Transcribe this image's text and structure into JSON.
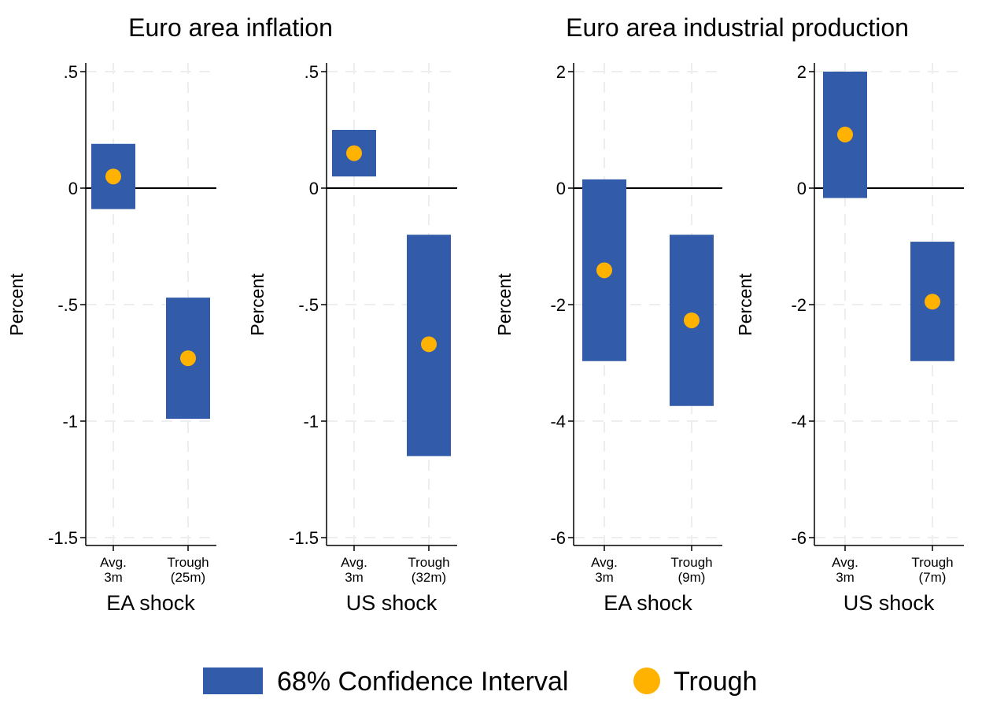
{
  "chart_data": {
    "type": "bar",
    "legend": {
      "position": "bottom",
      "items": [
        {
          "label": "68% Confidence Interval",
          "kind": "ci-bar",
          "color": "#325baa"
        },
        {
          "label": "Trough",
          "kind": "point",
          "color": "#ffb300"
        }
      ]
    },
    "groups": [
      {
        "title": "Euro area inflation"
      },
      {
        "title": "Euro area industrial production"
      }
    ],
    "ylabel": "Percent",
    "panels": [
      {
        "group": 0,
        "xlabel": "EA shock",
        "ylim": [
          -1.5,
          0.5
        ],
        "yticks": [
          0.5,
          0,
          -0.5,
          -1,
          -1.5
        ],
        "ytick_labels": [
          ".5",
          "0",
          "-.5",
          "-1",
          "-1.5"
        ],
        "categories": [
          {
            "label": [
              "Avg.",
              "3m"
            ],
            "ci_low": -0.09,
            "ci_high": 0.19,
            "point": 0.05
          },
          {
            "label": [
              "Trough",
              "(25m)"
            ],
            "ci_low": -0.99,
            "ci_high": -0.47,
            "point": -0.73
          }
        ]
      },
      {
        "group": 0,
        "xlabel": "US shock",
        "ylim": [
          -1.5,
          0.5
        ],
        "yticks": [
          0.5,
          0,
          -0.5,
          -1,
          -1.5
        ],
        "ytick_labels": [
          ".5",
          "0",
          "-.5",
          "-1",
          "-1.5"
        ],
        "categories": [
          {
            "label": [
              "Avg.",
              "3m"
            ],
            "ci_low": 0.05,
            "ci_high": 0.25,
            "point": 0.15
          },
          {
            "label": [
              "Trough",
              "(32m)"
            ],
            "ci_low": -1.15,
            "ci_high": -0.2,
            "point": -0.67
          }
        ]
      },
      {
        "group": 1,
        "xlabel": "EA shock",
        "ylim": [
          -6,
          2
        ],
        "yticks": [
          2,
          0,
          -2,
          -4,
          -6
        ],
        "ytick_labels": [
          "2",
          "0",
          "-2",
          "-4",
          "-6"
        ],
        "categories": [
          {
            "label": [
              "Avg.",
              "3m"
            ],
            "ci_low": -2.97,
            "ci_high": 0.15,
            "point": -1.41
          },
          {
            "label": [
              "Trough",
              "(9m)"
            ],
            "ci_low": -3.74,
            "ci_high": -0.8,
            "point": -2.27
          }
        ]
      },
      {
        "group": 1,
        "xlabel": "US shock",
        "ylim": [
          -6,
          2
        ],
        "yticks": [
          2,
          0,
          -2,
          -4,
          -6
        ],
        "ytick_labels": [
          "2",
          "0",
          "-2",
          "-4",
          "-6"
        ],
        "categories": [
          {
            "label": [
              "Avg.",
              "3m"
            ],
            "ci_low": -0.17,
            "ci_high": 2.0,
            "point": 0.92
          },
          {
            "label": [
              "Trough",
              "(7m)"
            ],
            "ci_low": -2.97,
            "ci_high": -0.92,
            "point": -1.95
          }
        ]
      }
    ]
  }
}
